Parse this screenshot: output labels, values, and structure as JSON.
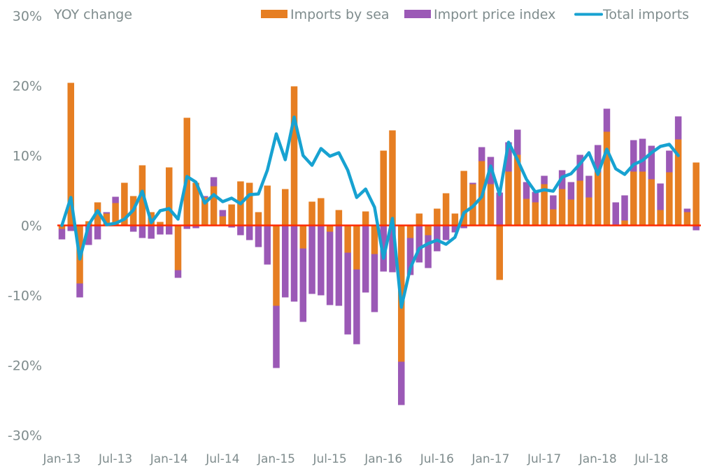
{
  "chart_data": {
    "type": "bar",
    "subtype": "stacked bar with line overlay",
    "title": "",
    "ylabel": "YOY change",
    "xlabel": "",
    "ylim": [
      -30,
      30
    ],
    "y_ticks": [
      30,
      20,
      10,
      0,
      -10,
      -20,
      -30
    ],
    "y_tick_labels": [
      "30%",
      "20%",
      "10%",
      "0%",
      "-10%",
      "-20%",
      "-30%"
    ],
    "x_tick_labels": [
      "Jan-13",
      "Jul-13",
      "Jan-14",
      "Jul-14",
      "Jan-15",
      "Jul-15",
      "Jan-16",
      "Jul-16",
      "Jan-17",
      "Jul-17",
      "Jan-18",
      "Jul-18"
    ],
    "x_tick_every_n_months": 6,
    "grid": false,
    "legend_position": "top-right",
    "zero_line_color": "#ff2a00",
    "categories": [
      "Jan-13",
      "Feb-13",
      "Mar-13",
      "Apr-13",
      "May-13",
      "Jun-13",
      "Jul-13",
      "Aug-13",
      "Sep-13",
      "Oct-13",
      "Nov-13",
      "Dec-13",
      "Jan-14",
      "Feb-14",
      "Mar-14",
      "Apr-14",
      "May-14",
      "Jun-14",
      "Jul-14",
      "Aug-14",
      "Sep-14",
      "Oct-14",
      "Nov-14",
      "Dec-14",
      "Jan-15",
      "Feb-15",
      "Mar-15",
      "Apr-15",
      "May-15",
      "Jun-15",
      "Jul-15",
      "Aug-15",
      "Sep-15",
      "Oct-15",
      "Nov-15",
      "Dec-15",
      "Jan-16",
      "Feb-16",
      "Mar-16",
      "Apr-16",
      "May-16",
      "Jun-16",
      "Jul-16",
      "Aug-16",
      "Sep-16",
      "Oct-16",
      "Nov-16",
      "Dec-16",
      "Jan-17",
      "Feb-17",
      "Mar-17",
      "Apr-17",
      "May-17",
      "Jun-17",
      "Jul-17",
      "Aug-17",
      "Sep-17",
      "Oct-17",
      "Nov-17",
      "Dec-17",
      "Jan-18",
      "Feb-18",
      "Mar-18",
      "Apr-18",
      "May-18",
      "Jun-18",
      "Jul-18",
      "Aug-18",
      "Sep-18",
      "Oct-18",
      "Nov-18",
      "Dec-18"
    ],
    "series": [
      {
        "name": "Imports by sea",
        "kind": "bar",
        "color": "#e67e22",
        "values": [
          -0.5,
          20.4,
          -8.3,
          0.6,
          3.3,
          1.7,
          3.2,
          6.1,
          4.2,
          8.6,
          1.9,
          0.5,
          8.3,
          -6.4,
          15.4,
          6.1,
          4.0,
          5.6,
          1.3,
          3.0,
          6.3,
          6.1,
          1.9,
          5.7,
          -11.5,
          5.2,
          19.9,
          -3.3,
          3.4,
          3.9,
          -0.9,
          2.2,
          -3.9,
          -6.3,
          2.0,
          -4.1,
          10.7,
          13.6,
          -19.5,
          -1.8,
          1.7,
          -1.4,
          2.4,
          4.6,
          1.7,
          7.8,
          5.9,
          9.2,
          5.9,
          -7.8,
          7.7,
          10.1,
          3.8,
          3.3,
          5.9,
          2.3,
          5.2,
          3.7,
          6.4,
          4.0,
          7.6,
          13.4,
          0.0,
          0.7,
          7.7,
          7.7,
          6.6,
          2.2,
          7.6,
          12.3,
          1.9,
          9.0
        ]
      },
      {
        "name": "Import price index",
        "kind": "bar",
        "color": "#9b59b6",
        "values": [
          -1.5,
          -0.8,
          -2.0,
          -2.8,
          -2.0,
          0.2,
          0.9,
          0.0,
          -0.9,
          -1.8,
          -1.9,
          -1.3,
          -1.3,
          -1.1,
          -0.5,
          -0.4,
          0.2,
          1.3,
          0.9,
          -0.3,
          -1.4,
          -2.1,
          -3.1,
          -5.6,
          -8.9,
          -10.3,
          -10.9,
          -10.5,
          -9.8,
          -10.0,
          -10.5,
          -11.5,
          -11.7,
          -10.7,
          -9.6,
          -8.3,
          -6.6,
          -6.7,
          -6.2,
          -5.3,
          -5.3,
          -4.7,
          -3.7,
          -2.1,
          -1.0,
          -0.4,
          0.2,
          2.0,
          3.9,
          4.7,
          4.2,
          3.6,
          2.4,
          1.5,
          1.2,
          2.0,
          2.7,
          2.5,
          3.7,
          3.1,
          3.9,
          3.3,
          3.3,
          3.6,
          4.5,
          4.7,
          4.8,
          3.8,
          3.1,
          3.3,
          0.5,
          -0.7
        ]
      },
      {
        "name": "Total imports",
        "kind": "line",
        "color": "#17a2d1",
        "values": [
          0.0,
          4.0,
          -4.8,
          0.1,
          2.1,
          0.1,
          0.3,
          0.9,
          2.2,
          4.9,
          0.4,
          2.1,
          2.4,
          0.9,
          7.0,
          6.2,
          3.2,
          4.4,
          3.4,
          3.9,
          3.1,
          4.4,
          4.5,
          7.9,
          13.1,
          9.4,
          15.5,
          10.0,
          8.6,
          11.0,
          9.9,
          10.4,
          7.9,
          4.0,
          5.2,
          2.6,
          -4.7,
          1.0,
          -11.7,
          -6.1,
          -3.3,
          -2.6,
          -2.1,
          -2.7,
          -1.7,
          1.8,
          2.7,
          4.1,
          8.5,
          4.4,
          11.9,
          9.4,
          6.6,
          4.8,
          5.1,
          4.9,
          6.9,
          7.4,
          8.8,
          10.4,
          7.3,
          10.9,
          8.1,
          7.3,
          8.7,
          9.3,
          10.4,
          11.3,
          11.6,
          10.0,
          null,
          null
        ]
      }
    ]
  }
}
